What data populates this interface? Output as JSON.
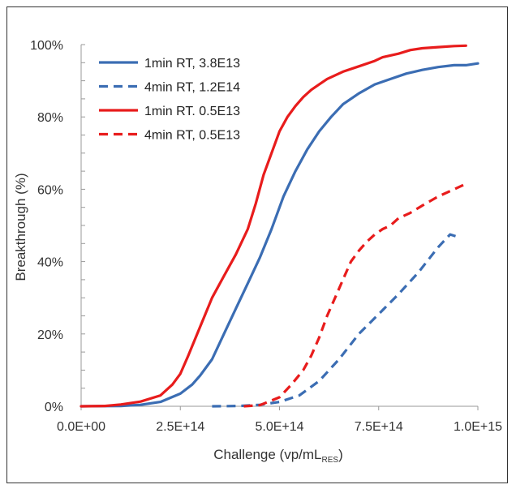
{
  "chart_data": {
    "type": "line",
    "title": "",
    "xlabel": "Challenge (vp/mL",
    "xlabel_sub": "RES",
    "xlabel_end": ")",
    "ylabel": "Breakthrough (%)",
    "xlim": [
      0,
      1000000000000000
    ],
    "ylim": [
      0,
      100
    ],
    "x_ticks": [
      {
        "value": 0,
        "label": "0.0E+00"
      },
      {
        "value": 250000000000000,
        "label": "2.5E+14"
      },
      {
        "value": 500000000000000,
        "label": "5.0E+14"
      },
      {
        "value": 750000000000000,
        "label": "7.5E+14"
      },
      {
        "value": 1000000000000000,
        "label": "1.0E+15"
      }
    ],
    "y_ticks": [
      {
        "value": 0,
        "label": "0%"
      },
      {
        "value": 20,
        "label": "20%"
      },
      {
        "value": 40,
        "label": "40%"
      },
      {
        "value": 60,
        "label": "60%"
      },
      {
        "value": 80,
        "label": "80%"
      },
      {
        "value": 100,
        "label": "100%"
      }
    ],
    "legend_position": "top-left",
    "series": [
      {
        "name": "1min RT, 3.8E13",
        "color": "#3b6db3",
        "dash": false,
        "points": [
          [
            0,
            0
          ],
          [
            100,
            0.1
          ],
          [
            150,
            0.4
          ],
          [
            200,
            1.2
          ],
          [
            250,
            3.5
          ],
          [
            280,
            6
          ],
          [
            300,
            8.5
          ],
          [
            330,
            13
          ],
          [
            360,
            20
          ],
          [
            390,
            27
          ],
          [
            420,
            34
          ],
          [
            450,
            41
          ],
          [
            480,
            49
          ],
          [
            510,
            58
          ],
          [
            540,
            65
          ],
          [
            570,
            71
          ],
          [
            600,
            76
          ],
          [
            630,
            80
          ],
          [
            660,
            83.5
          ],
          [
            700,
            86.5
          ],
          [
            740,
            89
          ],
          [
            780,
            90.5
          ],
          [
            820,
            92
          ],
          [
            860,
            93
          ],
          [
            900,
            93.8
          ],
          [
            940,
            94.3
          ],
          [
            970,
            94.3
          ],
          [
            1000,
            94.8
          ]
        ]
      },
      {
        "name": "4min RT, 1.2E14",
        "color": "#3b6db3",
        "dash": true,
        "points": [
          [
            330,
            0
          ],
          [
            400,
            0.1
          ],
          [
            450,
            0.4
          ],
          [
            500,
            1.2
          ],
          [
            550,
            3
          ],
          [
            600,
            7
          ],
          [
            650,
            13
          ],
          [
            700,
            20
          ],
          [
            750,
            25.5
          ],
          [
            800,
            31
          ],
          [
            850,
            37
          ],
          [
            900,
            44
          ],
          [
            930,
            47.5
          ],
          [
            945,
            47
          ]
        ]
      },
      {
        "name": "1min RT. 0.5E13",
        "color": "#e81c1c",
        "dash": false,
        "points": [
          [
            0,
            0
          ],
          [
            60,
            0.1
          ],
          [
            100,
            0.5
          ],
          [
            150,
            1.3
          ],
          [
            200,
            3
          ],
          [
            230,
            6
          ],
          [
            250,
            9
          ],
          [
            270,
            14
          ],
          [
            300,
            22
          ],
          [
            330,
            30
          ],
          [
            360,
            36
          ],
          [
            390,
            42
          ],
          [
            420,
            49
          ],
          [
            440,
            56
          ],
          [
            460,
            64
          ],
          [
            480,
            70
          ],
          [
            500,
            76
          ],
          [
            520,
            80
          ],
          [
            540,
            83
          ],
          [
            560,
            85.5
          ],
          [
            580,
            87.5
          ],
          [
            600,
            89
          ],
          [
            620,
            90.5
          ],
          [
            660,
            92.5
          ],
          [
            700,
            94
          ],
          [
            740,
            95.5
          ],
          [
            760,
            96.5
          ],
          [
            800,
            97.5
          ],
          [
            830,
            98.5
          ],
          [
            860,
            99
          ],
          [
            900,
            99.3
          ],
          [
            940,
            99.6
          ],
          [
            970,
            99.7
          ]
        ]
      },
      {
        "name": "4min RT, 0.5E13",
        "color": "#e81c1c",
        "dash": true,
        "points": [
          [
            410,
            0
          ],
          [
            450,
            0.3
          ],
          [
            500,
            2.5
          ],
          [
            530,
            6
          ],
          [
            560,
            10
          ],
          [
            580,
            14
          ],
          [
            600,
            19
          ],
          [
            620,
            25
          ],
          [
            640,
            30
          ],
          [
            660,
            35
          ],
          [
            680,
            40
          ],
          [
            700,
            43
          ],
          [
            720,
            45.5
          ],
          [
            740,
            47.5
          ],
          [
            760,
            49
          ],
          [
            780,
            50
          ],
          [
            800,
            52
          ],
          [
            830,
            53.5
          ],
          [
            860,
            55.5
          ],
          [
            900,
            58
          ],
          [
            940,
            60
          ],
          [
            970,
            61.5
          ]
        ]
      }
    ]
  }
}
